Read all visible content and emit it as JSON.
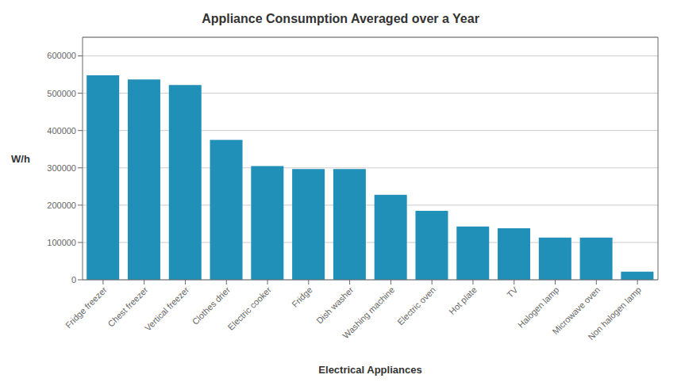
{
  "chart_data": {
    "type": "bar",
    "title": "Appliance Consumption Averaged over a Year",
    "xlabel": "Electrical Appliances",
    "ylabel": "W/h",
    "categories": [
      "Fridge freezer",
      "Chest freezer",
      "Vertical freezer",
      "Clothes drier",
      "Electric cooker",
      "Fridge",
      "Dish washer",
      "Washing machine",
      "Electric oven",
      "Hot plate",
      "TV",
      "Halogen lamp",
      "Microwave oven",
      "Non halogen lamp"
    ],
    "values": [
      548000,
      537000,
      522000,
      375000,
      305000,
      297000,
      297000,
      228000,
      185000,
      143000,
      138000,
      113000,
      113000,
      22000
    ],
    "color": "#2090B8",
    "ylim": [
      0,
      650000
    ],
    "yticks": [
      0,
      100000,
      200000,
      300000,
      400000,
      500000,
      600000
    ],
    "grid": true
  }
}
